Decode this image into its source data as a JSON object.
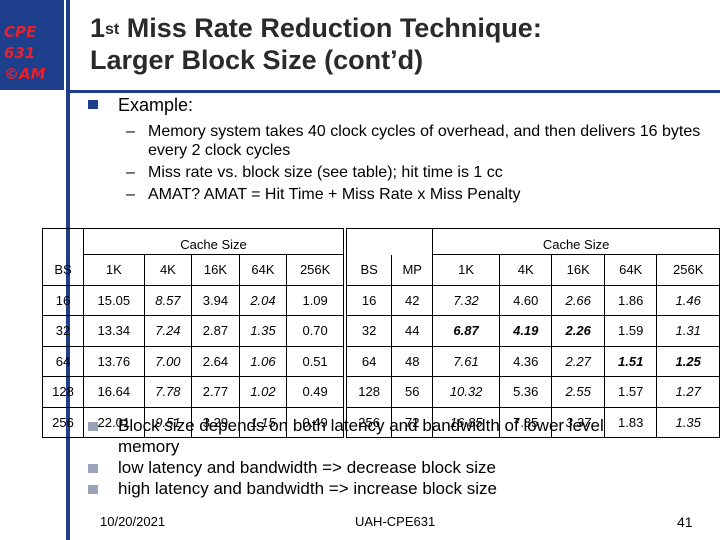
{
  "logo": {
    "line1": "CPE",
    "line2": "631",
    "line3": "©AM"
  },
  "title": {
    "sup_part": "st",
    "first": "1",
    "line1_rest": " Miss Rate Reduction Technique:",
    "line2": "Larger Block Size (cont’d)"
  },
  "example": {
    "label": "Example:",
    "items": [
      "Memory system takes 40 clock cycles of overhead, and then delivers 16 bytes every 2 clock cycles",
      "Miss rate vs. block size (see table); hit time is 1 cc",
      "AMAT? AMAT = Hit Time + Miss Rate x Miss Penalty"
    ]
  },
  "miss_rate_table": {
    "group_label": "Cache Size",
    "headers": [
      "BS",
      "1K",
      "4K",
      "16K",
      "64K",
      "256K"
    ],
    "rows": [
      [
        "16",
        "15.05",
        "8.57",
        "3.94",
        "2.04",
        "1.09"
      ],
      [
        "32",
        "13.34",
        "7.24",
        "2.87",
        "1.35",
        "0.70"
      ],
      [
        "64",
        "13.76",
        "7.00",
        "2.64",
        "1.06",
        "0.51"
      ],
      [
        "128",
        "16.64",
        "7.78",
        "2.77",
        "1.02",
        "0.49"
      ],
      [
        "256",
        "22.01",
        "9.51",
        "3.29",
        "1.15",
        "0.49"
      ]
    ]
  },
  "amat_table": {
    "group_label": "Cache Size",
    "headers": [
      "BS",
      "MP",
      "1K",
      "4K",
      "16K",
      "64K",
      "256K"
    ],
    "rows": [
      [
        "16",
        "42",
        "7.32",
        "4.60",
        "2.66",
        "1.86",
        "1.46"
      ],
      [
        "32",
        "44",
        "6.87",
        "4.19",
        "2.26",
        "1.59",
        "1.31"
      ],
      [
        "64",
        "48",
        "7.61",
        "4.36",
        "2.27",
        "1.51",
        "1.25"
      ],
      [
        "128",
        "56",
        "10.32",
        "5.36",
        "2.55",
        "1.57",
        "1.27"
      ],
      [
        "256",
        "72",
        "16.85",
        "7.85",
        "3.37",
        "1.83",
        "1.35"
      ]
    ],
    "highlighted": [
      [
        1,
        2
      ],
      [
        1,
        3
      ],
      [
        1,
        4
      ],
      [
        2,
        5
      ],
      [
        2,
        6
      ]
    ]
  },
  "conclusions": [
    "Block size depends on both latency and bandwidth of lower level memory",
    "low latency and bandwidth => decrease block size",
    "high latency and bandwidth => increase block size"
  ],
  "footer": {
    "date": "10/20/2021",
    "center": "UAH-CPE631",
    "page": "41"
  }
}
